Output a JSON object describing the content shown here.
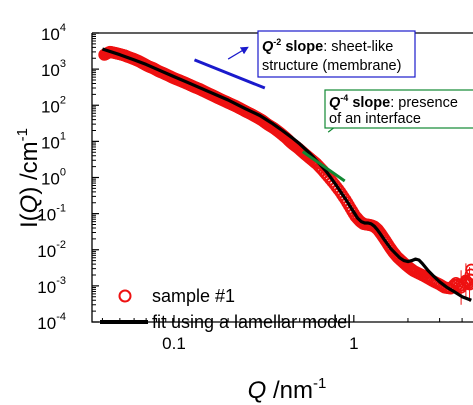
{
  "chart_data": {
    "type": "scatter",
    "x_scale": "log",
    "y_scale": "log",
    "xlim": [
      0.035,
      4.6
    ],
    "ylim": [
      0.0001,
      10000
    ],
    "xlabel": {
      "q": "Q",
      "unit": " /nm",
      "sup": "-1"
    },
    "ylabel": {
      "main": "I(",
      "q": "Q",
      "rest": ") /cm",
      "sup": "-1"
    },
    "x_ticks": [
      {
        "value": 0.1,
        "label": "0.1"
      },
      {
        "value": 1,
        "label": "1"
      }
    ],
    "y_ticks": [
      {
        "value": 0.0001,
        "base": "10",
        "exp": "-4"
      },
      {
        "value": 0.001,
        "base": "10",
        "exp": "-3"
      },
      {
        "value": 0.01,
        "base": "10",
        "exp": "-2"
      },
      {
        "value": 0.1,
        "base": "10",
        "exp": "-1"
      },
      {
        "value": 1,
        "base": "10",
        "exp": "0"
      },
      {
        "value": 10,
        "base": "10",
        "exp": "1"
      },
      {
        "value": 100,
        "base": "10",
        "exp": "2"
      },
      {
        "value": 1000,
        "base": "10",
        "exp": "3"
      },
      {
        "value": 10000,
        "base": "10",
        "exp": "4"
      }
    ],
    "legend_position": "bottom-left",
    "series": [
      {
        "name": "sample #1",
        "kind": "markers",
        "color": "#ee1111",
        "marker": "open-circle",
        "points": [
          [
            0.041,
            2500
          ],
          [
            0.044,
            3000
          ],
          [
            0.047,
            2800
          ],
          [
            0.05,
            2600
          ],
          [
            0.053,
            2400
          ],
          [
            0.056,
            2150
          ],
          [
            0.06,
            1900
          ],
          [
            0.064,
            1650
          ],
          [
            0.068,
            1400
          ],
          [
            0.072,
            1200
          ],
          [
            0.077,
            1050
          ],
          [
            0.082,
            880
          ],
          [
            0.088,
            760
          ],
          [
            0.094,
            650
          ],
          [
            0.1,
            560
          ],
          [
            0.107,
            490
          ],
          [
            0.114,
            430
          ],
          [
            0.122,
            370
          ],
          [
            0.13,
            320
          ],
          [
            0.139,
            280
          ],
          [
            0.148,
            240
          ],
          [
            0.158,
            205
          ],
          [
            0.169,
            175
          ],
          [
            0.18,
            150
          ],
          [
            0.193,
            128
          ],
          [
            0.206,
            110
          ],
          [
            0.22,
            95
          ],
          [
            0.235,
            80
          ],
          [
            0.25,
            68
          ],
          [
            0.27,
            56
          ],
          [
            0.29,
            46
          ],
          [
            0.31,
            38
          ],
          [
            0.33,
            30
          ],
          [
            0.36,
            23
          ],
          [
            0.39,
            17
          ],
          [
            0.42,
            12.5
          ],
          [
            0.45,
            9
          ],
          [
            0.49,
            6.5
          ],
          [
            0.53,
            4.6
          ],
          [
            0.57,
            3.4
          ],
          [
            0.62,
            2.4
          ],
          [
            0.67,
            1.6
          ],
          [
            0.72,
            1.05
          ],
          [
            0.78,
            0.65
          ],
          [
            0.84,
            0.4
          ],
          [
            0.9,
            0.24
          ],
          [
            0.96,
            0.14
          ],
          [
            1.02,
            0.085
          ],
          [
            1.08,
            0.062
          ],
          [
            1.13,
            0.052
          ],
          [
            1.18,
            0.05
          ],
          [
            1.24,
            0.048
          ],
          [
            1.3,
            0.044
          ],
          [
            1.36,
            0.036
          ],
          [
            1.42,
            0.027
          ],
          [
            1.5,
            0.018
          ],
          [
            1.58,
            0.012
          ],
          [
            1.66,
            0.0085
          ],
          [
            1.75,
            0.0062
          ],
          [
            1.85,
            0.0048
          ],
          [
            1.95,
            0.0038
          ],
          [
            2.05,
            0.0031
          ],
          [
            2.15,
            0.0026
          ],
          [
            2.3,
            0.0022
          ],
          [
            2.45,
            0.0019
          ],
          [
            2.6,
            0.0016
          ],
          [
            2.8,
            0.0013
          ],
          [
            3.0,
            0.0011
          ],
          [
            3.2,
            0.0009
          ],
          [
            3.45,
            0.00085
          ],
          [
            3.7,
            0.0012
          ],
          [
            3.95,
            0.0009
          ],
          [
            4.2,
            0.0014
          ],
          [
            4.4,
            0.0011
          ],
          [
            4.5,
            0.0028
          ]
        ]
      },
      {
        "name": "fit using a lamellar model",
        "kind": "line",
        "color": "#000000",
        "points": [
          [
            0.04,
            3600
          ],
          [
            0.05,
            2500
          ],
          [
            0.06,
            1800
          ],
          [
            0.07,
            1350
          ],
          [
            0.08,
            1000
          ],
          [
            0.1,
            620
          ],
          [
            0.12,
            420
          ],
          [
            0.15,
            260
          ],
          [
            0.2,
            140
          ],
          [
            0.25,
            80
          ],
          [
            0.3,
            52
          ],
          [
            0.35,
            32
          ],
          [
            0.4,
            20
          ],
          [
            0.45,
            13
          ],
          [
            0.5,
            8.5
          ],
          [
            0.55,
            5.5
          ],
          [
            0.6,
            3.5
          ],
          [
            0.7,
            1.5
          ],
          [
            0.8,
            0.6
          ],
          [
            0.9,
            0.25
          ],
          [
            1.0,
            0.11
          ],
          [
            1.05,
            0.075
          ],
          [
            1.1,
            0.06
          ],
          [
            1.15,
            0.055
          ],
          [
            1.2,
            0.055
          ],
          [
            1.25,
            0.052
          ],
          [
            1.3,
            0.045
          ],
          [
            1.35,
            0.036
          ],
          [
            1.4,
            0.028
          ],
          [
            1.5,
            0.017
          ],
          [
            1.6,
            0.011
          ],
          [
            1.7,
            0.008
          ],
          [
            1.8,
            0.006
          ],
          [
            1.9,
            0.005
          ],
          [
            2.0,
            0.0047
          ],
          [
            2.1,
            0.005
          ],
          [
            2.2,
            0.0055
          ],
          [
            2.3,
            0.0052
          ],
          [
            2.4,
            0.0042
          ],
          [
            2.6,
            0.0026
          ],
          [
            2.8,
            0.0018
          ],
          [
            3.0,
            0.0013
          ],
          [
            3.3,
            0.0009
          ],
          [
            3.6,
            0.0007
          ],
          [
            4.0,
            0.0005
          ],
          [
            4.5,
            0.0004
          ]
        ]
      }
    ],
    "annotations": [
      {
        "id": "q2",
        "color": "#1a1acc",
        "line_from": [
          0.13,
          1800
        ],
        "line_to": [
          0.32,
          300
        ],
        "arrow_from": [
          0.2,
          1900
        ],
        "arrow_to": [
          0.255,
          3900
        ],
        "q": "Q",
        "sup": "-2",
        "bold_rest": " slope",
        "text1_rest": ": sheet-like",
        "text2": "structure (membrane)"
      },
      {
        "id": "q4",
        "color": "#118833",
        "line_from": [
          0.52,
          5.2
        ],
        "line_to": [
          0.89,
          0.8
        ],
        "arrow_from": [
          0.72,
          18
        ],
        "arrow_to": [
          0.95,
          52
        ],
        "q": "Q",
        "sup": "-4",
        "bold_rest": " slope",
        "text1_rest": ": presence",
        "text2": "of an interface"
      }
    ]
  }
}
